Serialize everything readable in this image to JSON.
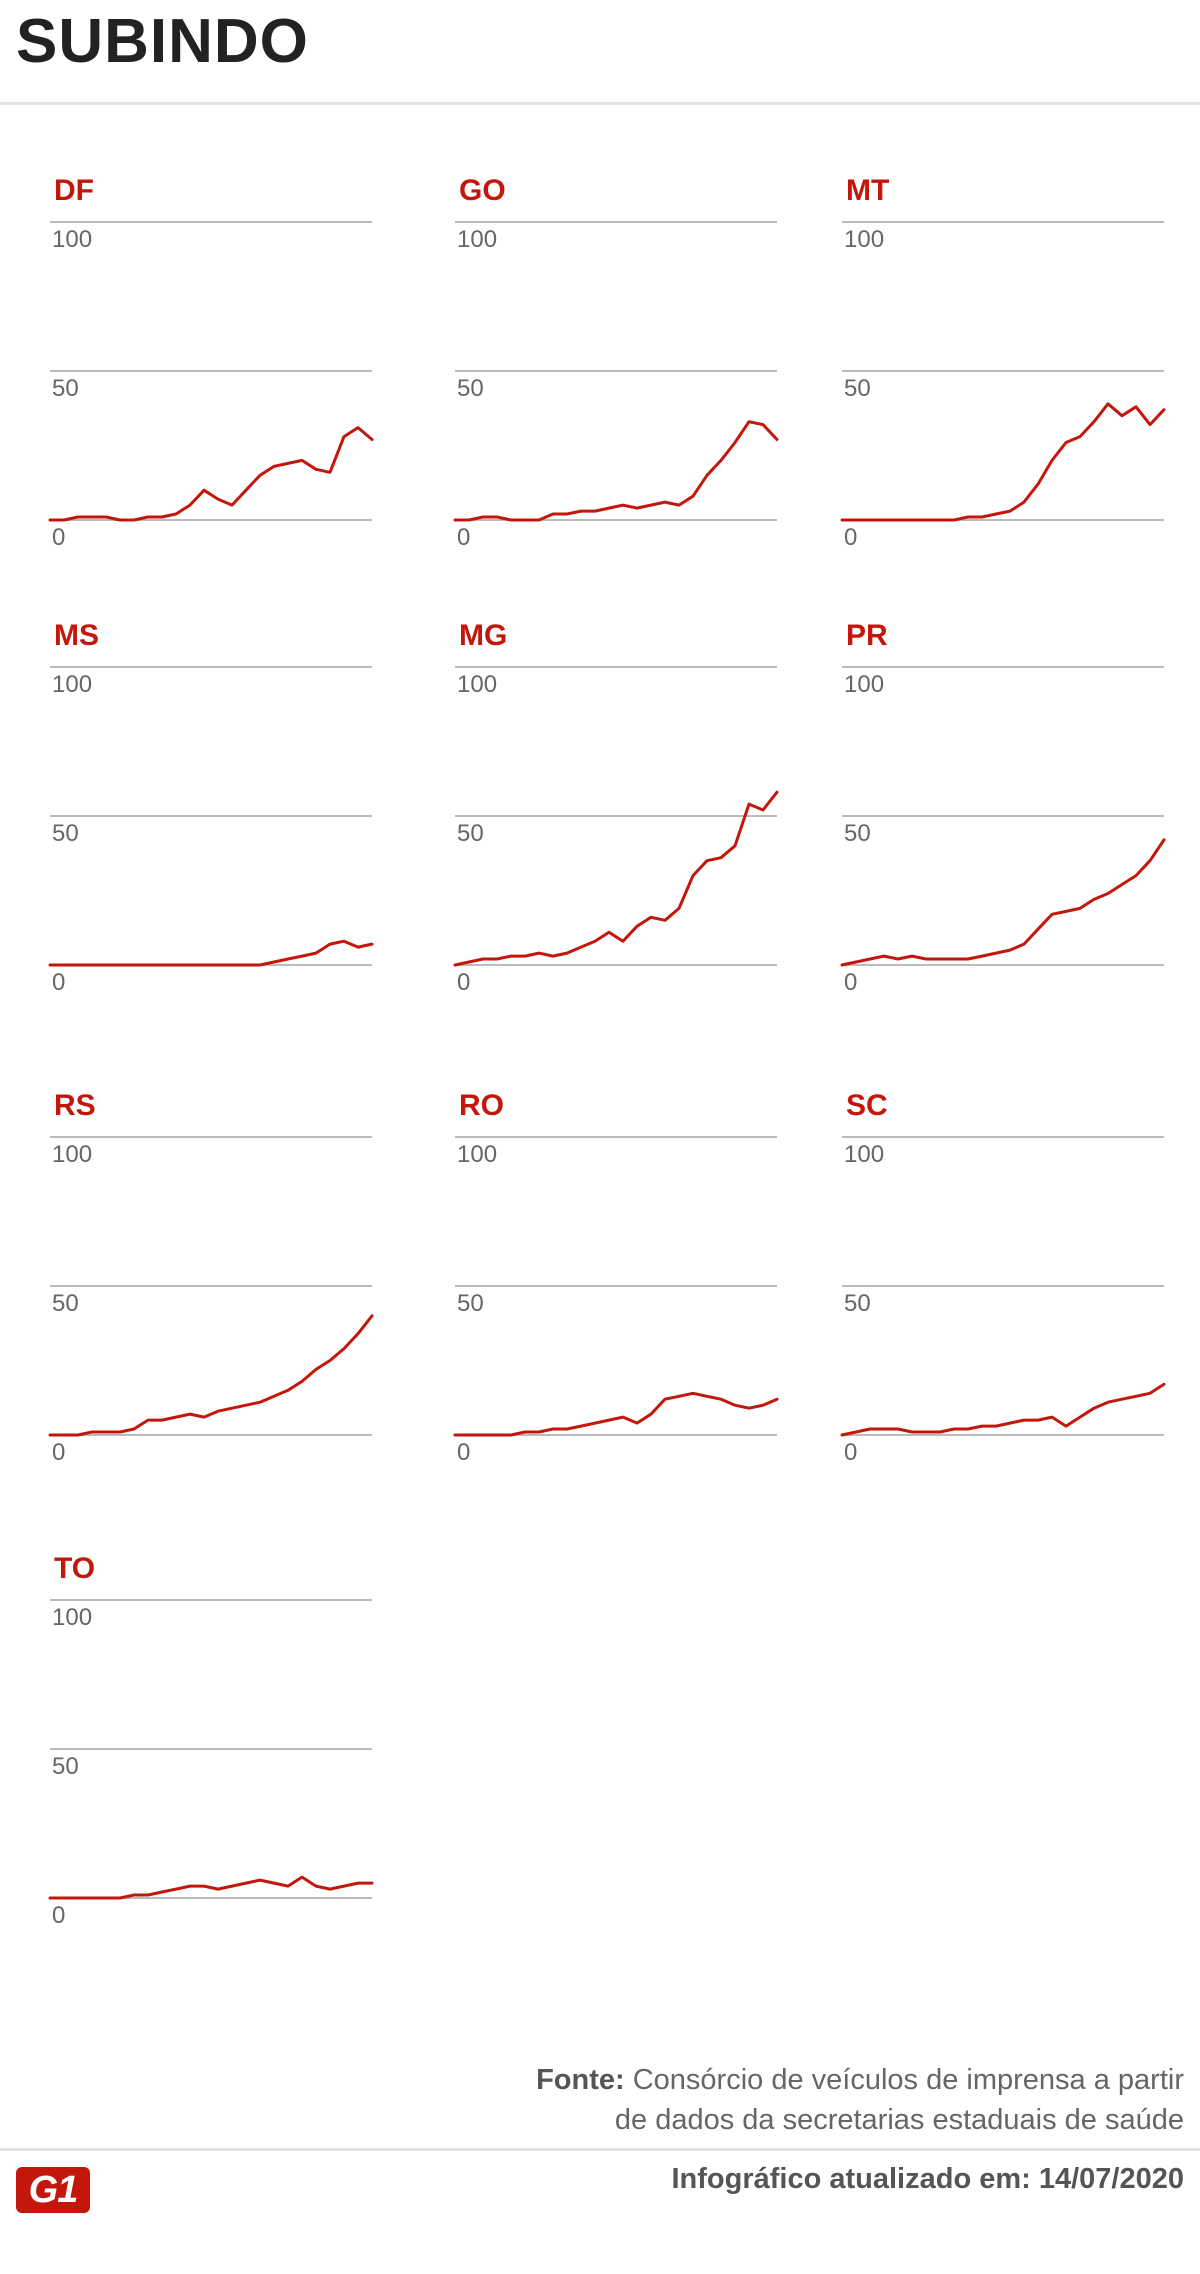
{
  "title": "SUBINDO",
  "source": {
    "label": "Fonte:",
    "line1": "Consórcio de veículos de imprensa a partir",
    "line2": "de dados da secretarias estaduais de saúde"
  },
  "updated": "Infográfico atualizado em: 14/07/2020",
  "logo": "G1",
  "colors": {
    "line": "#c4170c",
    "title": "#c4170c",
    "grid": "#bbbbbb",
    "tick": "#666666"
  },
  "chart_data": [
    {
      "type": "line",
      "title": "DF",
      "ylim": [
        0,
        100
      ],
      "yticks": [
        100,
        50,
        0
      ],
      "values": [
        0,
        0,
        1,
        1,
        1,
        0,
        0,
        1,
        1,
        2,
        5,
        10,
        7,
        5,
        10,
        15,
        18,
        19,
        20,
        17,
        16,
        28,
        31,
        27
      ]
    },
    {
      "type": "line",
      "title": "GO",
      "ylim": [
        0,
        100
      ],
      "yticks": [
        100,
        50,
        0
      ],
      "values": [
        0,
        0,
        1,
        1,
        0,
        0,
        0,
        2,
        2,
        3,
        3,
        4,
        5,
        4,
        5,
        6,
        5,
        8,
        15,
        20,
        26,
        33,
        32,
        27
      ]
    },
    {
      "type": "line",
      "title": "MT",
      "ylim": [
        0,
        100
      ],
      "yticks": [
        100,
        50,
        0
      ],
      "values": [
        0,
        0,
        0,
        0,
        0,
        0,
        0,
        0,
        0,
        1,
        1,
        2,
        3,
        6,
        12,
        20,
        26,
        28,
        33,
        39,
        35,
        38,
        32,
        37
      ]
    },
    {
      "type": "line",
      "title": "MS",
      "ylim": [
        0,
        100
      ],
      "yticks": [
        100,
        50,
        0
      ],
      "values": [
        0,
        0,
        0,
        0,
        0,
        0,
        0,
        0,
        0,
        0,
        0,
        0,
        0,
        0,
        0,
        0,
        1,
        2,
        3,
        4,
        7,
        8,
        6,
        7
      ]
    },
    {
      "type": "line",
      "title": "MG",
      "ylim": [
        0,
        100
      ],
      "yticks": [
        100,
        50,
        0
      ],
      "values": [
        0,
        1,
        2,
        2,
        3,
        3,
        4,
        3,
        4,
        6,
        8,
        11,
        8,
        13,
        16,
        15,
        19,
        30,
        35,
        36,
        40,
        54,
        52,
        58
      ]
    },
    {
      "type": "line",
      "title": "PR",
      "ylim": [
        0,
        100
      ],
      "yticks": [
        100,
        50,
        0
      ],
      "values": [
        0,
        1,
        2,
        3,
        2,
        3,
        2,
        2,
        2,
        2,
        3,
        4,
        5,
        7,
        12,
        17,
        18,
        19,
        22,
        24,
        27,
        30,
        35,
        42
      ]
    },
    {
      "type": "line",
      "title": "RS",
      "ylim": [
        0,
        100
      ],
      "yticks": [
        100,
        50,
        0
      ],
      "values": [
        0,
        0,
        0,
        1,
        1,
        1,
        2,
        5,
        5,
        6,
        7,
        6,
        8,
        9,
        10,
        11,
        13,
        15,
        18,
        22,
        25,
        29,
        34,
        40
      ]
    },
    {
      "type": "line",
      "title": "RO",
      "ylim": [
        0,
        100
      ],
      "yticks": [
        100,
        50,
        0
      ],
      "values": [
        0,
        0,
        0,
        0,
        0,
        1,
        1,
        2,
        2,
        3,
        4,
        5,
        6,
        4,
        7,
        12,
        13,
        14,
        13,
        12,
        10,
        9,
        10,
        12
      ]
    },
    {
      "type": "line",
      "title": "SC",
      "ylim": [
        0,
        100
      ],
      "yticks": [
        100,
        50,
        0
      ],
      "values": [
        0,
        1,
        2,
        2,
        2,
        1,
        1,
        1,
        2,
        2,
        3,
        3,
        4,
        5,
        5,
        6,
        3,
        6,
        9,
        11,
        12,
        13,
        14,
        17
      ]
    },
    {
      "type": "line",
      "title": "TO",
      "ylim": [
        0,
        100
      ],
      "yticks": [
        100,
        50,
        0
      ],
      "values": [
        0,
        0,
        0,
        0,
        0,
        0,
        1,
        1,
        2,
        3,
        4,
        4,
        3,
        4,
        5,
        6,
        5,
        4,
        7,
        4,
        3,
        4,
        5,
        5
      ]
    }
  ]
}
